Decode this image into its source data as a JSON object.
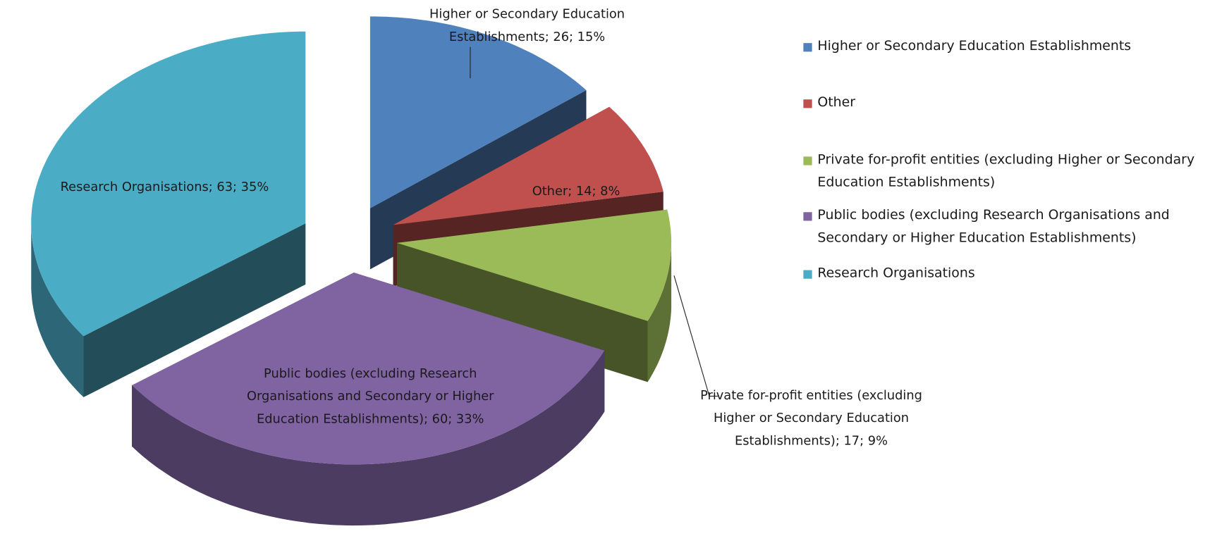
{
  "chart_data": {
    "type": "pie",
    "categories": [
      "Higher or Secondary Education Establishments",
      "Other",
      "Private for-profit entities (excluding Higher or Secondary Education Establishments)",
      "Public bodies (excluding Research Organisations and Secondary or Higher Education Establishments)",
      "Research Organisations"
    ],
    "values": [
      26,
      14,
      17,
      60,
      63
    ],
    "value_labels": [
      "Higher or Secondary Education Establishments; 26; 15%",
      "Other; 14; 8%",
      "Private for-profit entities (excluding Higher or Secondary Education Establishments); 17; 9%",
      "Public bodies (excluding Research Organisations and Secondary or Higher Education Establishments); 60; 33%",
      "Research Organisations; 63; 35%"
    ],
    "colors": [
      "#4f81bd",
      "#c0504d",
      "#9bbb59",
      "#8064a2",
      "#4bacc6"
    ],
    "legend": "right"
  }
}
